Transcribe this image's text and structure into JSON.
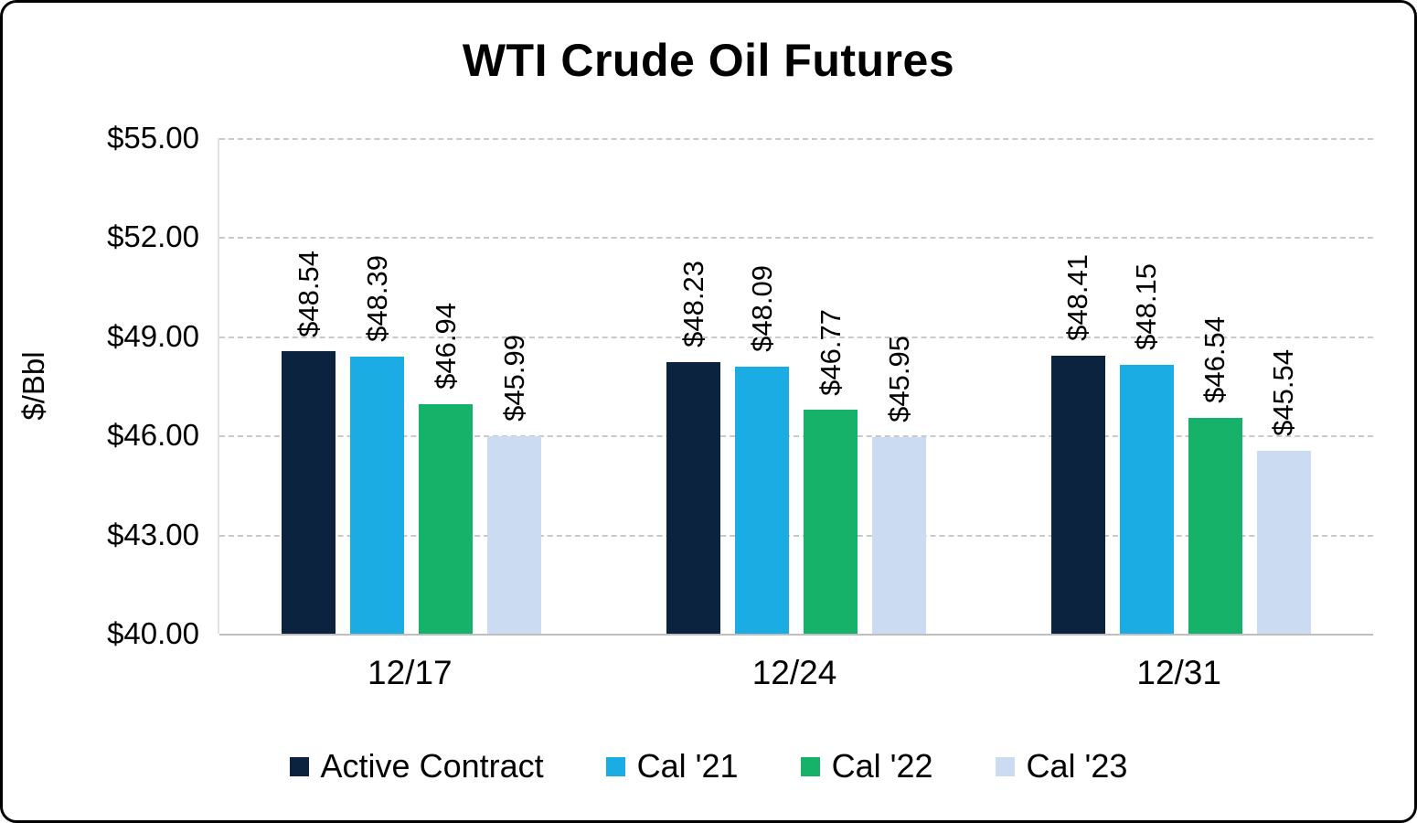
{
  "chart_data": {
    "type": "bar",
    "title": "WTI Crude Oil Futures",
    "xlabel": "",
    "ylabel": "$/Bbl",
    "categories": [
      "12/17",
      "12/24",
      "12/31"
    ],
    "series": [
      {
        "name": "Active Contract",
        "color": "#0C2340",
        "values": [
          48.54,
          48.23,
          48.41
        ],
        "labels": [
          "$48.54",
          "$48.23",
          "$48.41"
        ]
      },
      {
        "name": "Cal '21",
        "color": "#1BACE3",
        "values": [
          48.39,
          48.09,
          48.15
        ],
        "labels": [
          "$48.39",
          "$48.09",
          "$48.15"
        ]
      },
      {
        "name": "Cal '22",
        "color": "#16B269",
        "values": [
          46.94,
          46.77,
          46.54
        ],
        "labels": [
          "$46.94",
          "$46.77",
          "$46.54"
        ]
      },
      {
        "name": "Cal '23",
        "color": "#CBDCF2",
        "values": [
          45.99,
          45.95,
          45.54
        ],
        "labels": [
          "$45.99",
          "$45.95",
          "$45.54"
        ]
      }
    ],
    "ylim": [
      40,
      55
    ],
    "yticks": [
      55,
      52,
      49,
      46,
      43,
      40
    ],
    "ytick_labels": [
      "$55.00",
      "$52.00",
      "$49.00",
      "$46.00",
      "$43.00",
      "$40.00"
    ],
    "grid": "horizontal-dashed",
    "legend_position": "bottom"
  }
}
